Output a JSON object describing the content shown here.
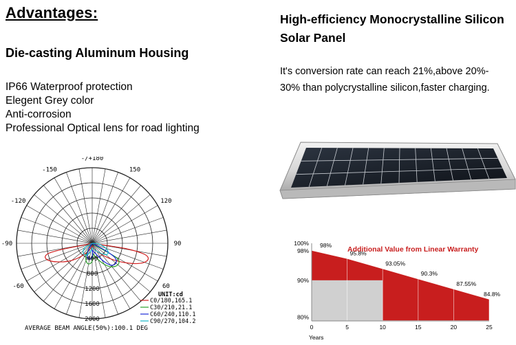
{
  "advantages": {
    "heading": "Advantages:"
  },
  "housing": {
    "title": "Die-casting Aluminum Housing",
    "features": [
      "IP66 Waterproof protection",
      "Elegent Grey color",
      "Anti-corrosion",
      "Professional Optical lens for road lighting"
    ]
  },
  "panel": {
    "title_line1": "High-efficiency Monocrystalline Silicon",
    "title_line2": "Solar Panel",
    "desc_line1": "It's conversion rate can reach 21%,above 20%-",
    "desc_line2": "30% than polycrystalline silicon,faster charging."
  },
  "polar": {
    "angle_labels": [
      "-/+180",
      "-150",
      "150",
      "-120",
      "120",
      "-90",
      "90",
      "-60",
      "60"
    ],
    "radial_labels": [
      "400",
      "800",
      "1200",
      "1600",
      "2000"
    ],
    "unit": "UNIT:cd",
    "legend": [
      {
        "label": "C0/180,165.1",
        "color": "#d22020"
      },
      {
        "label": "C30/210,21.1",
        "color": "#2aa02a"
      },
      {
        "label": "C60/240,110.1",
        "color": "#1a2ad8"
      },
      {
        "label": "C90/270,104.2",
        "color": "#18b8c8"
      }
    ],
    "beam_angle": "AVERAGE BEAM ANGLE(50%):100.1 DEG"
  },
  "chart_data": {
    "type": "area",
    "title": "Additional Value from Linear Warranty",
    "xlabel": "Years",
    "ylabel": "",
    "x_ticks": [
      0,
      5,
      10,
      15,
      20,
      25
    ],
    "y_ticks": [
      "100%",
      "98%",
      "90%",
      "80%"
    ],
    "xlim": [
      0,
      25
    ],
    "ylim": [
      79,
      100
    ],
    "linear_warranty": {
      "x": [
        0,
        5,
        10,
        15,
        20,
        25
      ],
      "y": [
        98,
        95.8,
        93.05,
        90.3,
        87.55,
        84.8
      ],
      "labels": [
        "98%",
        "95.8%",
        "93.05%",
        "90.3%",
        "87.55%",
        "84.8%"
      ]
    },
    "step_warranty": {
      "x": [
        0,
        10,
        10,
        25
      ],
      "y": [
        90,
        90,
        80,
        80
      ]
    },
    "colors": {
      "linear": "#c81e1e",
      "step": "#d0d0d0"
    }
  }
}
